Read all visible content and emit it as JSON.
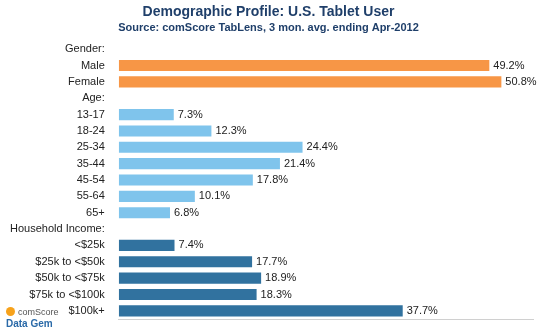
{
  "chart_data": {
    "type": "bar",
    "orientation": "horizontal",
    "title": "Demographic Profile: U.S. Tablet User",
    "subtitle": "Source: comScore TabLens, 3 mon. avg. ending Apr-2012",
    "annotations": [
      "comScore",
      "Data Gem"
    ],
    "categories": [
      "Gender:",
      "Male",
      "Female",
      "Age:",
      "13-17",
      "18-24",
      "25-34",
      "35-44",
      "45-54",
      "55-64",
      "65+",
      "Household Income:",
      "<$25k",
      "$25k to <$50k",
      "$50k to <$75k",
      "$75k to <$100k",
      "$100k+"
    ],
    "values": [
      null,
      49.2,
      50.8,
      null,
      7.3,
      12.3,
      24.4,
      21.4,
      17.8,
      10.1,
      6.8,
      null,
      7.4,
      17.7,
      18.9,
      18.3,
      37.7
    ],
    "value_labels": [
      null,
      "49.2%",
      "50.8%",
      null,
      "7.3%",
      "12.3%",
      "24.4%",
      "21.4%",
      "17.8%",
      "10.1%",
      "6.8%",
      null,
      "7.4%",
      "17.7%",
      "18.9%",
      "18.3%",
      "37.7%"
    ],
    "colors": [
      null,
      "#f79646",
      "#f79646",
      null,
      "#7fc4ec",
      "#7fc4ec",
      "#7fc4ec",
      "#7fc4ec",
      "#7fc4ec",
      "#7fc4ec",
      "#7fc4ec",
      null,
      "#31729f",
      "#31729f",
      "#31729f",
      "#31729f",
      "#31729f"
    ],
    "xlim": [
      0,
      55
    ],
    "xticks": [],
    "grid": false,
    "data_labels": true,
    "tick_labels": "y"
  }
}
